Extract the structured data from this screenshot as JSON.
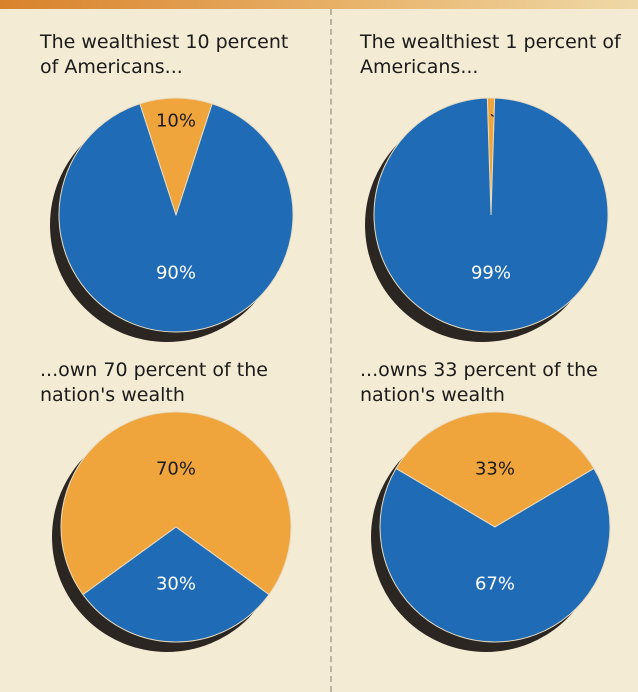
{
  "chart_data": [
    {
      "type": "pie",
      "title": "The wealthiest 10 percent of Americans...",
      "values": [
        10,
        90
      ],
      "value_labels": [
        "10%",
        "90%"
      ],
      "colors": [
        "#f0a43c",
        "#1f6bb5"
      ]
    },
    {
      "type": "pie",
      "title": "The wealthiest 1 percent of Americans...",
      "values": [
        1,
        99
      ],
      "value_labels": [
        "1%",
        "99%"
      ],
      "colors": [
        "#f0a43c",
        "#1f6bb5"
      ]
    },
    {
      "type": "pie",
      "title": "...own 70 percent of the nation's wealth",
      "values": [
        70,
        30
      ],
      "value_labels": [
        "70%",
        "30%"
      ],
      "colors": [
        "#f0a43c",
        "#1f6bb5"
      ]
    },
    {
      "type": "pie",
      "title": "...owns 33 percent of the nation's wealth",
      "values": [
        33,
        67
      ],
      "value_labels": [
        "33%",
        "67%"
      ],
      "colors": [
        "#f0a43c",
        "#1f6bb5"
      ]
    }
  ]
}
